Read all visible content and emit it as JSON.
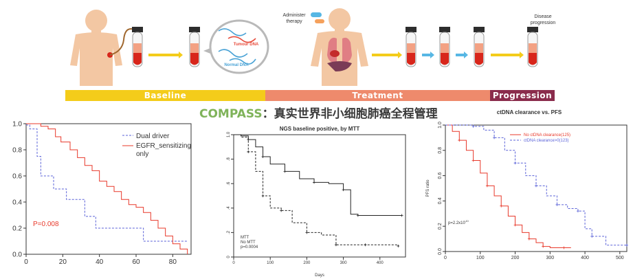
{
  "illustration": {
    "administer_therapy": [
      "Administer",
      "therapy"
    ],
    "disease_progression": [
      "Disease",
      "progression"
    ],
    "tumour_dna": "Tumour DNA",
    "normal_dna": "Normal DNA"
  },
  "phases": [
    {
      "label": "Baseline",
      "color": "#f4cc1a"
    },
    {
      "label": "Treatment",
      "color": "#ee8a6c"
    },
    {
      "label": "Progression",
      "color": "#8a2c4c"
    }
  ],
  "title": {
    "part1": "COMPASS",
    "part2": "：真实世界非小细胞肺癌全程管理"
  },
  "colors": {
    "red": "#e8382a",
    "blue": "#5a62d8",
    "black": "#222222",
    "title_green": "#7fb35a"
  },
  "chart_data": [
    {
      "type": "line",
      "title": "",
      "xlim": [
        0,
        90
      ],
      "ylim": [
        0,
        1.0
      ],
      "xticks": [
        "0",
        "20",
        "40",
        "60",
        "80"
      ],
      "yticks": [
        "0.0",
        "0.2",
        "0.4",
        "0.6",
        "0.8",
        "1.0"
      ],
      "legend": [
        "Dual driver",
        "EGFR_sensitizing only"
      ],
      "annotation": "P=0.008",
      "series": [
        {
          "name": "Dual driver",
          "style": "dashed",
          "color": "#5a62d8",
          "x": [
            0,
            2,
            6,
            8,
            15,
            22,
            32,
            38,
            42,
            52,
            64,
            76,
            88
          ],
          "y": [
            0.99,
            0.96,
            0.75,
            0.6,
            0.5,
            0.42,
            0.29,
            0.2,
            0.2,
            0.2,
            0.1,
            0.1,
            0.1
          ]
        },
        {
          "name": "EGFR_sensitizing only",
          "style": "solid",
          "color": "#e8382a",
          "x": [
            0,
            8,
            12,
            16,
            19,
            24,
            28,
            32,
            36,
            40,
            44,
            48,
            52,
            56,
            60,
            64,
            68,
            72,
            76,
            80,
            84,
            88
          ],
          "y": [
            1.0,
            0.98,
            0.96,
            0.9,
            0.86,
            0.8,
            0.74,
            0.68,
            0.64,
            0.56,
            0.52,
            0.48,
            0.42,
            0.38,
            0.36,
            0.32,
            0.26,
            0.2,
            0.14,
            0.08,
            0.04,
            0.0
          ]
        }
      ]
    },
    {
      "type": "line",
      "title": "NGS baseline positive, by MTT",
      "xlabel": "Days",
      "xlim": [
        0,
        470
      ],
      "ylim": [
        0,
        1.0
      ],
      "xticks": [
        "0",
        "100",
        "200",
        "300",
        "400"
      ],
      "yticks": [
        "0",
        ".2",
        ".4",
        ".6",
        ".8",
        "1.0"
      ],
      "legend": [
        "MTT",
        "No MTT"
      ],
      "annotation": "p=0.0004",
      "series": [
        {
          "name": "MTT",
          "style": "dashed",
          "color": "#222222",
          "x": [
            0,
            20,
            40,
            60,
            80,
            100,
            130,
            160,
            200,
            240,
            280,
            320,
            360,
            400,
            450
          ],
          "y": [
            1.0,
            0.98,
            0.86,
            0.7,
            0.5,
            0.4,
            0.38,
            0.28,
            0.2,
            0.18,
            0.1,
            0.1,
            0.1,
            0.1,
            0.09
          ]
        },
        {
          "name": "No MTT",
          "style": "solid",
          "color": "#222222",
          "x": [
            0,
            20,
            40,
            60,
            80,
            100,
            140,
            180,
            220,
            260,
            300,
            320,
            340,
            400,
            460
          ],
          "y": [
            1.0,
            0.99,
            0.96,
            0.9,
            0.82,
            0.76,
            0.7,
            0.64,
            0.61,
            0.6,
            0.55,
            0.35,
            0.34,
            0.34,
            0.34
          ]
        }
      ]
    },
    {
      "type": "line",
      "title": "ctDNA clearance vs. PFS",
      "ylabel": "PFS ratio",
      "xlim": [
        0,
        520
      ],
      "ylim": [
        0,
        1.0
      ],
      "xticks": [
        "0",
        "100",
        "200",
        "300",
        "400",
        "500"
      ],
      "yticks": [
        "0.0",
        "0.2",
        "0.4",
        "0.6",
        "0.8",
        "1.0"
      ],
      "legend": [
        "No ctDNA clearance(125)",
        "ctDNA clearance>0(123)"
      ],
      "annotation": "p=2.2x10",
      "annotation_exp": "-10",
      "series": [
        {
          "name": "No ctDNA clearance(125)",
          "style": "solid",
          "color": "#e8382a",
          "x": [
            0,
            20,
            40,
            60,
            80,
            100,
            120,
            140,
            160,
            180,
            200,
            220,
            240,
            260,
            280,
            300,
            340,
            360
          ],
          "y": [
            1.0,
            0.95,
            0.88,
            0.8,
            0.72,
            0.62,
            0.52,
            0.44,
            0.36,
            0.28,
            0.21,
            0.15,
            0.1,
            0.07,
            0.04,
            0.03,
            0.03,
            0.03
          ]
        },
        {
          "name": "ctDNA clearance>0(123)",
          "style": "dashed",
          "color": "#5a62d8",
          "x": [
            0,
            40,
            80,
            110,
            140,
            170,
            200,
            230,
            260,
            290,
            320,
            350,
            380,
            400,
            420,
            460,
            520
          ],
          "y": [
            1.0,
            1.0,
            0.99,
            0.96,
            0.9,
            0.8,
            0.7,
            0.6,
            0.52,
            0.44,
            0.37,
            0.34,
            0.32,
            0.18,
            0.12,
            0.05,
            0.05
          ]
        }
      ]
    }
  ]
}
